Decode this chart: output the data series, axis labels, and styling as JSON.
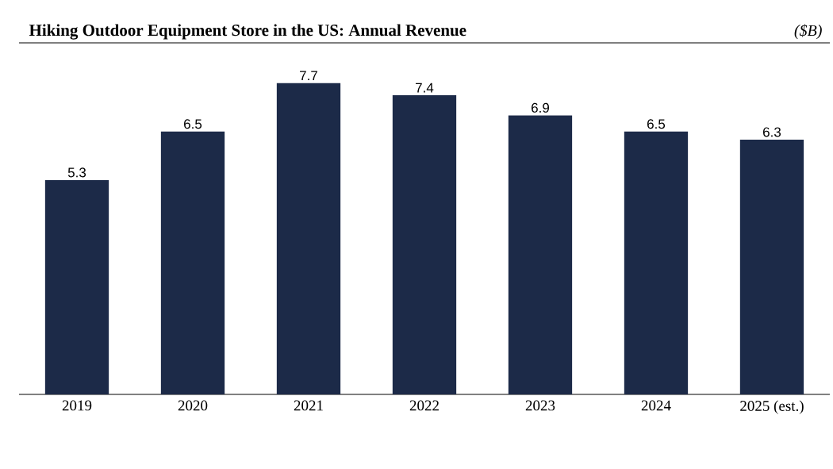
{
  "chart_data": {
    "type": "bar",
    "title": "Hiking Outdoor Equipment Store in the US: Annual Revenue",
    "ylabel": "($B)",
    "categories": [
      "2019",
      "2020",
      "2021",
      "2022",
      "2023",
      "2024",
      "2025 (est.)"
    ],
    "values": [
      5.3,
      6.5,
      7.7,
      7.4,
      6.9,
      6.5,
      6.3
    ],
    "color": "#1c2a48",
    "data_labels": true
  }
}
